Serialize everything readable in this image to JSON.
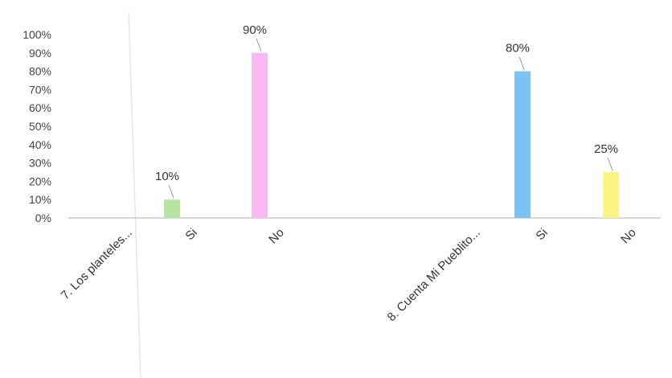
{
  "chart_data": {
    "type": "bar",
    "title": "",
    "xlabel": "",
    "ylabel": "",
    "ylim": [
      0,
      1
    ],
    "y_tick_labels": [
      "0%",
      "10%",
      "20%",
      "30%",
      "40%",
      "50%",
      "60%",
      "70%",
      "80%",
      "90%",
      "100%"
    ],
    "categories": [
      "7. Los planteles...",
      "Si",
      "No",
      "8. Cuenta Mi Pueblito...",
      "Si",
      "No"
    ],
    "values": [
      null,
      0.1,
      0.9,
      null,
      0.8,
      0.25
    ],
    "data_labels": [
      "",
      "10%",
      "90%",
      "",
      "80%",
      "25%"
    ],
    "colors": [
      "",
      "#b5e3a0",
      "#f8b8f4",
      "",
      "#7cc2f2",
      "#fbf586"
    ],
    "grid": false,
    "legend": "none"
  }
}
